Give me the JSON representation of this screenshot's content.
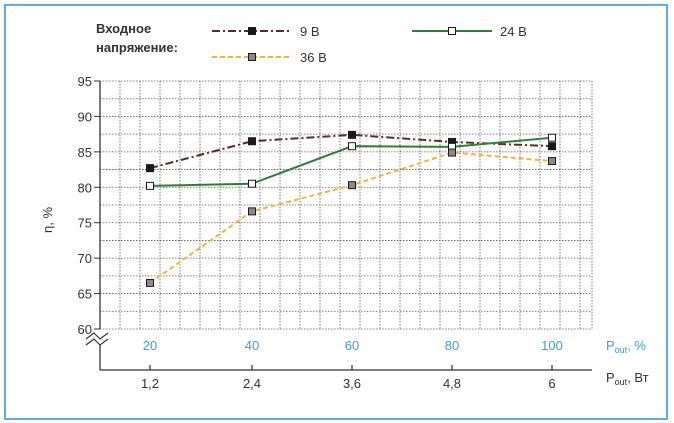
{
  "chart_data": {
    "type": "line",
    "title": "",
    "legend_title_line1": "Входное",
    "legend_title_line2": "напряжение:",
    "legend_placement": "top",
    "ylabel": "η, %",
    "xlabel_power_main": "P",
    "xlabel_power_sub": "out",
    "xlabel_power_unit": ", Вт",
    "xlabel_percent_main": "P",
    "xlabel_percent_sub": "out",
    "xlabel_percent_unit": ", %",
    "ylim": [
      60,
      95
    ],
    "yticks": [
      "60",
      "65",
      "70",
      "75",
      "80",
      "85",
      "90",
      "95"
    ],
    "x_percent": [
      20,
      40,
      60,
      80,
      100
    ],
    "x_percent_labels": [
      "20",
      "40",
      "60",
      "80",
      "100"
    ],
    "x_power_labels": [
      "1,2",
      "2,4",
      "3,6",
      "4,8",
      "6"
    ],
    "grid": true,
    "axis_break": true,
    "series": [
      {
        "name": "9 В",
        "color": "#5a2e20",
        "dash": "dashdot",
        "marker": "filled-square",
        "values": [
          82.7,
          86.5,
          87.4,
          86.4,
          85.8
        ]
      },
      {
        "name": "24 В",
        "color": "#2e7d3a",
        "dash": "solid",
        "marker": "open-square",
        "values": [
          80.2,
          80.5,
          85.8,
          85.7,
          87.0
        ]
      },
      {
        "name": "36 В",
        "color": "#f2b43c",
        "dash": "dashed",
        "marker": "gray-square",
        "values": [
          66.5,
          76.6,
          80.3,
          84.9,
          83.7
        ]
      }
    ]
  }
}
